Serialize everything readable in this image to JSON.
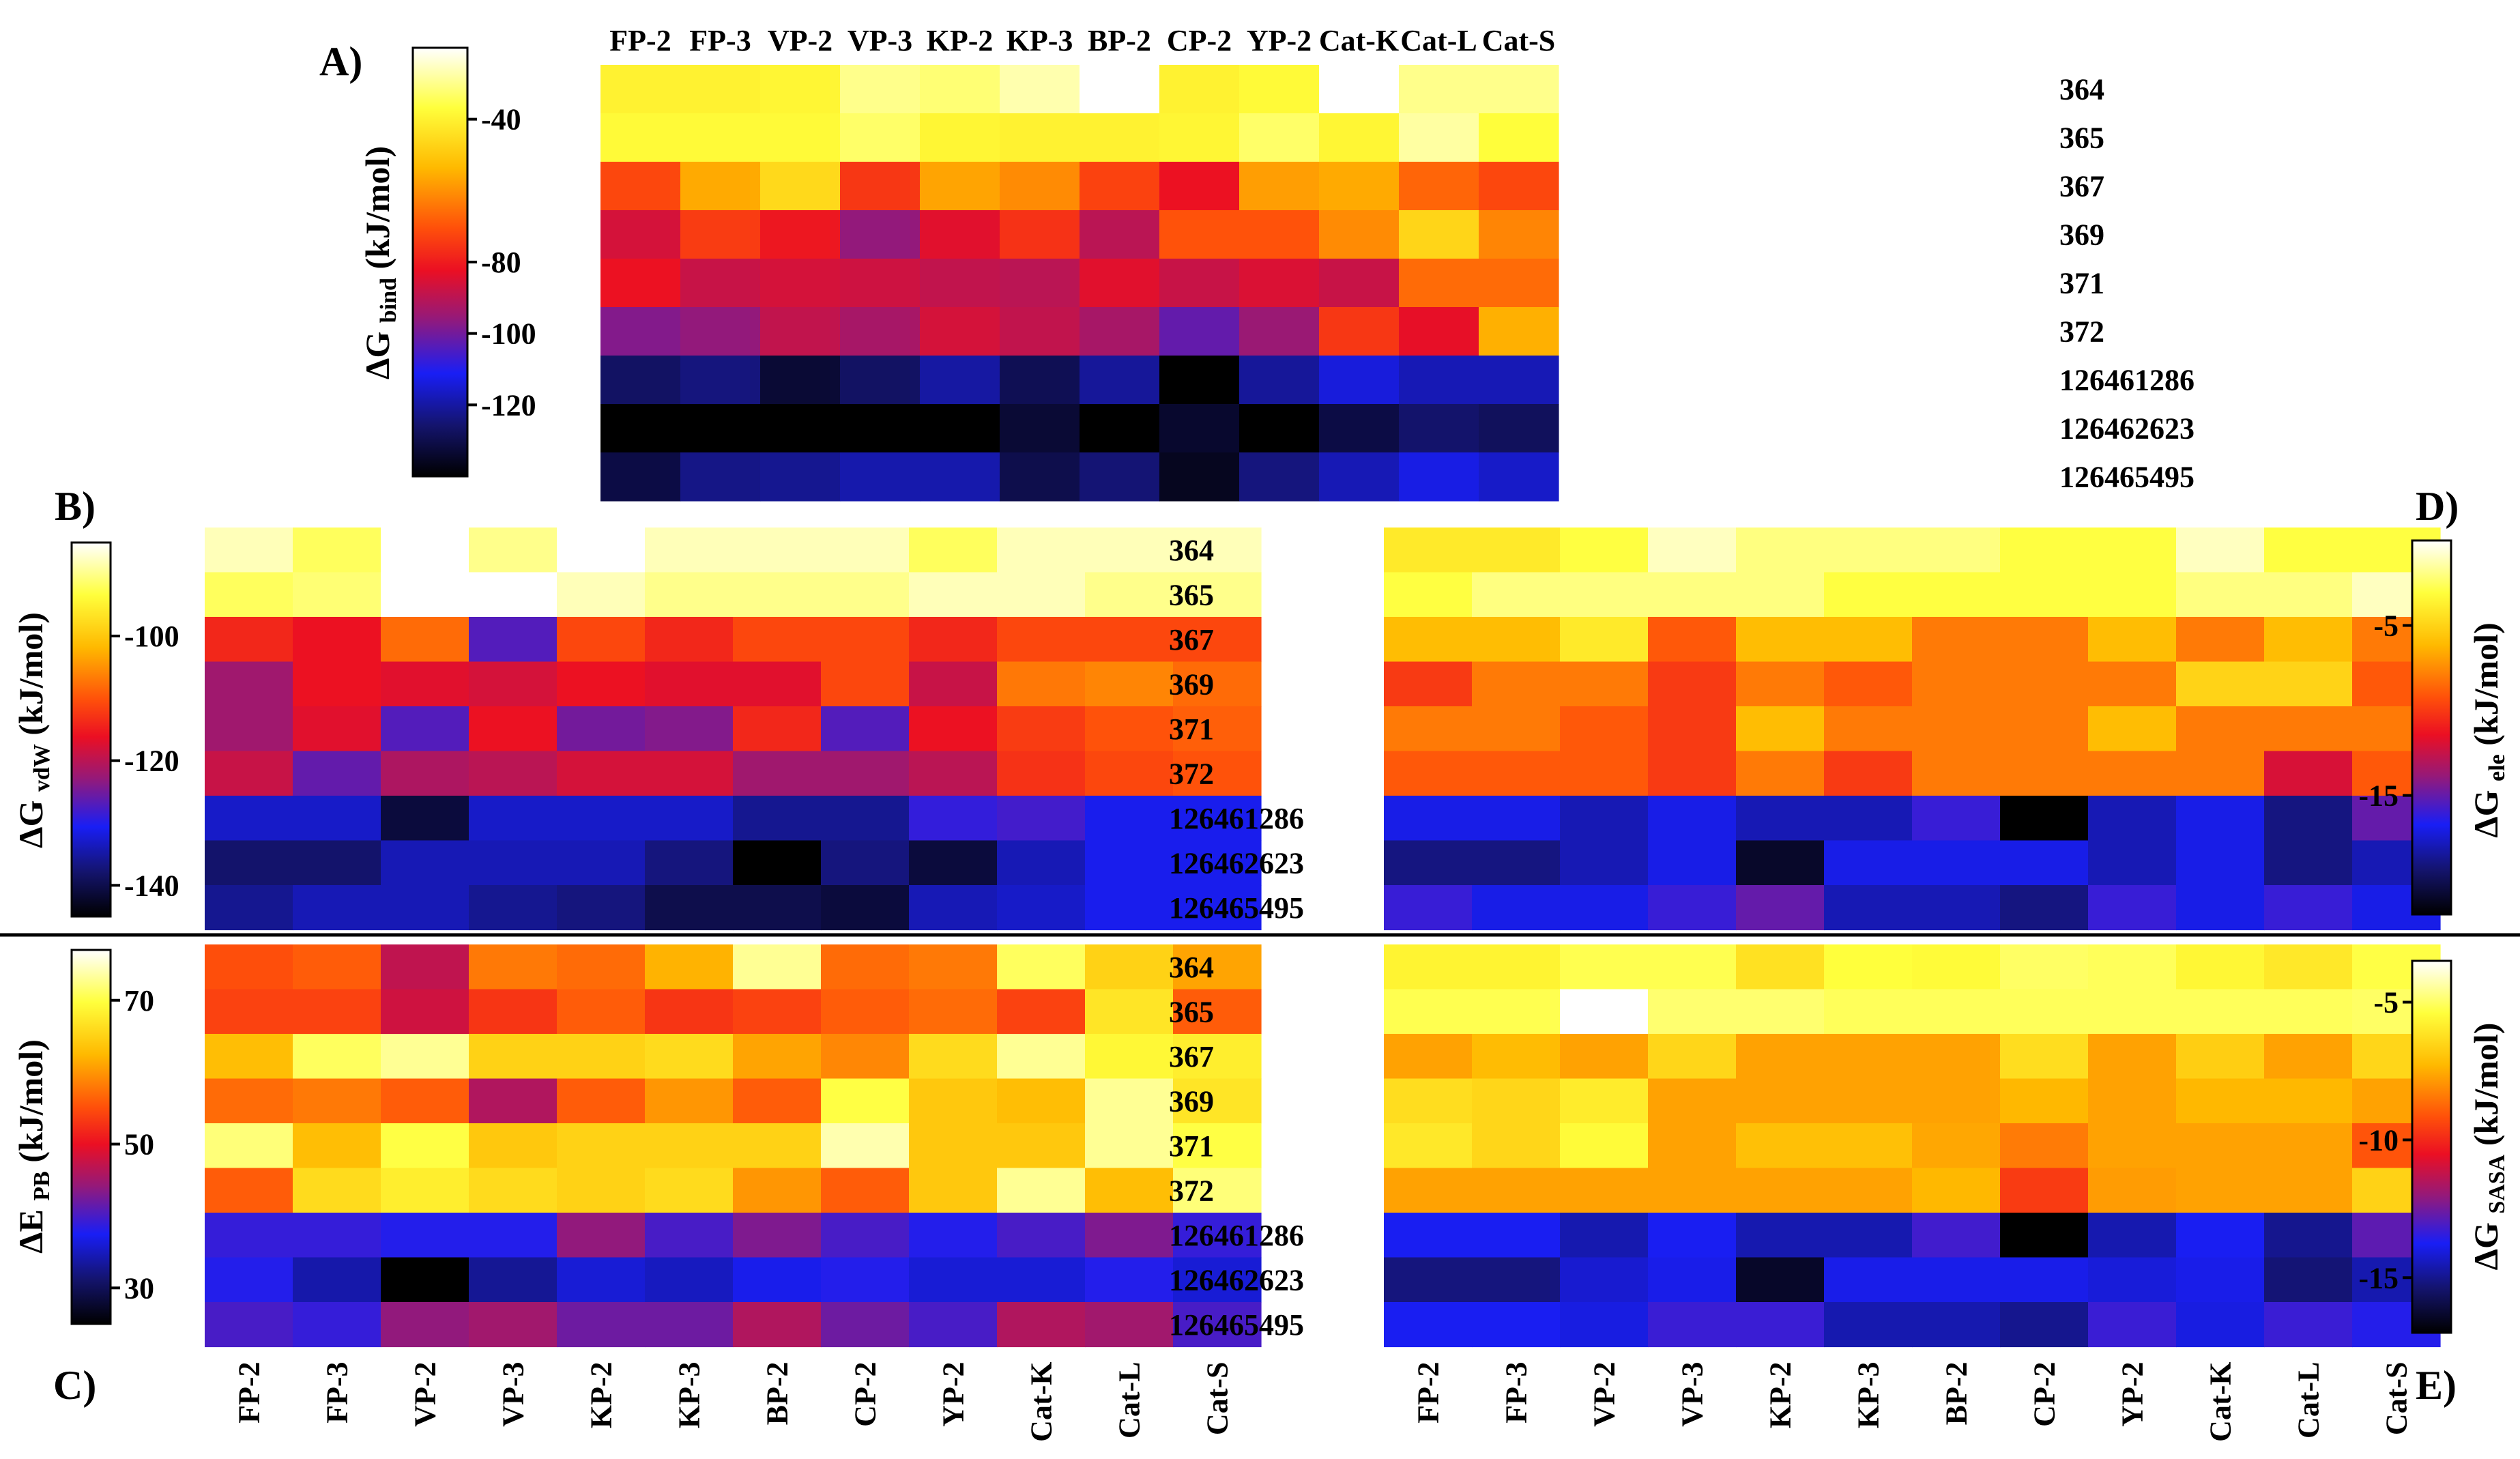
{
  "columns": [
    "FP-2",
    "FP-3",
    "VP-2",
    "VP-3",
    "KP-2",
    "KP-3",
    "BP-2",
    "CP-2",
    "YP-2",
    "Cat-K",
    "Cat-L",
    "Cat-S"
  ],
  "rows": [
    "364",
    "365",
    "367",
    "369",
    "371",
    "372",
    "126461286",
    "126462623",
    "126465495"
  ],
  "chart_data": [
    {
      "panel": "A)",
      "type": "heatmap",
      "title": "ΔG bind (kJ/mol)",
      "colorbar": {
        "label": "ΔG",
        "subscript": "bind",
        "unit": " (kJ/mol)",
        "ticks": [
          -40,
          -80,
          -100,
          -120
        ],
        "range": [
          -140,
          -20
        ],
        "position": "left"
      },
      "values": [
        [
          -40,
          -40,
          -39,
          -30,
          -32,
          -27,
          -20,
          -40,
          -38,
          -20,
          -30,
          -30
        ],
        [
          -38,
          -38,
          -38,
          -33,
          -39,
          -40,
          -40,
          -39,
          -33,
          -39,
          -28,
          -37
        ],
        [
          -72,
          -56,
          -46,
          -75,
          -57,
          -61,
          -73,
          -82,
          -58,
          -56,
          -67,
          -72
        ],
        [
          -86,
          -74,
          -81,
          -96,
          -84,
          -76,
          -90,
          -70,
          -70,
          -61,
          -47,
          -62
        ],
        [
          -82,
          -88,
          -86,
          -87,
          -89,
          -90,
          -84,
          -88,
          -85,
          -88,
          -66,
          -66
        ],
        [
          -98,
          -96,
          -89,
          -93,
          -86,
          -89,
          -93,
          -102,
          -95,
          -75,
          -83,
          -55
        ],
        [
          -127,
          -124,
          -133,
          -127,
          -120,
          -129,
          -121,
          -140,
          -121,
          -114,
          -118,
          -118
        ],
        [
          -140,
          -140,
          -140,
          -140,
          -140,
          -133,
          -140,
          -134,
          -140,
          -131,
          -126,
          -128
        ],
        [
          -131,
          -123,
          -122,
          -119,
          -119,
          -130,
          -125,
          -136,
          -124,
          -118,
          -113,
          -116
        ]
      ]
    },
    {
      "panel": "B)",
      "type": "heatmap",
      "title": "ΔG vdW (kJ/mol)",
      "colorbar": {
        "label": "ΔG",
        "subscript": "vdW",
        "unit": " (kJ/mol)",
        "ticks": [
          -100,
          -120,
          -140
        ],
        "range": [
          -145,
          -85
        ],
        "position": "left"
      },
      "values": [
        [
          -88,
          -92,
          -85,
          -90,
          -85,
          -88,
          -88,
          -88,
          -92,
          -88,
          -88,
          -88
        ],
        [
          -92,
          -91,
          -85,
          -85,
          -88,
          -90,
          -90,
          -90,
          -88,
          -88,
          -90,
          -90
        ],
        [
          -114,
          -116,
          -108,
          -127,
          -111,
          -114,
          -111,
          -111,
          -114,
          -111,
          -111,
          -111
        ],
        [
          -122,
          -116,
          -117,
          -118,
          -116,
          -117,
          -117,
          -111,
          -119,
          -107,
          -106,
          -108
        ],
        [
          -122,
          -117,
          -127,
          -116,
          -125,
          -124,
          -114,
          -127,
          -116,
          -112,
          -110,
          -109
        ],
        [
          -119,
          -126,
          -121,
          -120,
          -118,
          -118,
          -122,
          -122,
          -120,
          -113,
          -111,
          -110
        ],
        [
          -133,
          -133,
          -141,
          -133,
          -133,
          -133,
          -136,
          -136,
          -129,
          -128,
          -131,
          -131
        ],
        [
          -138,
          -138,
          -134,
          -134,
          -134,
          -137,
          -145,
          -137,
          -141,
          -134,
          -131,
          -131
        ],
        [
          -136,
          -134,
          -134,
          -136,
          -137,
          -140,
          -140,
          -141,
          -134,
          -133,
          -131,
          -131
        ]
      ]
    },
    {
      "panel": "D)",
      "type": "heatmap",
      "title": "ΔG ele (kJ/mol)",
      "colorbar": {
        "label": "ΔG",
        "subscript": "ele",
        "unit": " (kJ/mol)",
        "ticks": [
          -5,
          -15
        ],
        "range": [
          -22,
          0
        ],
        "position": "right"
      },
      "values": [
        [
          -4,
          -4,
          -3,
          -1,
          -2,
          -2,
          -2,
          -3,
          -3,
          -1,
          -3,
          -3
        ],
        [
          -3,
          -2,
          -2,
          -2,
          -2,
          -3,
          -3,
          -3,
          -3,
          -2,
          -2,
          -1
        ],
        [
          -6,
          -6,
          -4,
          -9,
          -6,
          -6,
          -8,
          -8,
          -6,
          -8,
          -6,
          -8
        ],
        [
          -10,
          -8,
          -8,
          -10,
          -8,
          -9,
          -8,
          -8,
          -8,
          -5,
          -5,
          -9
        ],
        [
          -8,
          -8,
          -9,
          -10,
          -6,
          -8,
          -8,
          -8,
          -6,
          -8,
          -8,
          -8
        ],
        [
          -9,
          -9,
          -9,
          -10,
          -8,
          -10,
          -8,
          -8,
          -8,
          -8,
          -12,
          -9
        ],
        [
          -17,
          -17,
          -18,
          -17,
          -18,
          -18,
          -16,
          -22,
          -18,
          -17,
          -19,
          -15
        ],
        [
          -19,
          -19,
          -18,
          -17,
          -21,
          -17,
          -17,
          -17,
          -18,
          -17,
          -19,
          -18
        ],
        [
          -16,
          -17,
          -17,
          -16,
          -15,
          -18,
          -18,
          -19,
          -16,
          -17,
          -16,
          -17
        ]
      ]
    },
    {
      "panel": "C)",
      "type": "heatmap",
      "title": "ΔE PB (kJ/mol)",
      "colorbar": {
        "label": "ΔE",
        "subscript": "PB",
        "unit": " (kJ/mol)",
        "ticks": [
          30,
          50,
          70
        ],
        "range": [
          25,
          77
        ],
        "position": "left"
      },
      "values": [
        [
          55,
          56,
          47,
          58,
          57,
          62,
          73,
          57,
          58,
          71,
          65,
          61
        ],
        [
          54,
          54,
          48,
          53,
          56,
          53,
          54,
          56,
          57,
          54,
          67,
          56
        ],
        [
          63,
          71,
          73,
          65,
          65,
          66,
          61,
          59,
          66,
          73,
          69,
          68
        ],
        [
          57,
          58,
          56,
          46,
          56,
          60,
          56,
          70,
          64,
          63,
          73,
          67
        ],
        [
          72,
          63,
          70,
          64,
          65,
          65,
          65,
          74,
          64,
          64,
          73,
          70
        ],
        [
          56,
          66,
          68,
          66,
          65,
          66,
          60,
          56,
          64,
          73,
          63,
          72
        ],
        [
          39,
          39,
          38,
          38,
          44,
          40,
          43,
          40,
          38,
          40,
          43,
          39
        ],
        [
          38,
          34,
          25,
          33,
          36,
          35,
          37,
          38,
          36,
          36,
          38,
          36
        ],
        [
          40,
          39,
          44,
          45,
          42,
          42,
          46,
          42,
          40,
          46,
          45,
          40
        ]
      ]
    },
    {
      "panel": "E)",
      "type": "heatmap",
      "title": "ΔG SASA (kJ/mol)",
      "colorbar": {
        "label": "ΔG",
        "subscript": "SASA",
        "unit": " (kJ/mol)",
        "ticks": [
          -5,
          -10,
          -15
        ],
        "range": [
          -17,
          -3.5
        ],
        "position": "right"
      },
      "values": [
        [
          -5.7,
          -5.7,
          -5.2,
          -5.2,
          -6.2,
          -5.4,
          -5.5,
          -5.0,
          -5.1,
          -5.6,
          -6.0,
          -5.3
        ],
        [
          -5.2,
          -5.2,
          -3.5,
          -4.9,
          -4.9,
          -5.1,
          -5.1,
          -5.1,
          -5.1,
          -5.1,
          -5.1,
          -5.0
        ],
        [
          -7.7,
          -7.2,
          -7.7,
          -6.5,
          -7.7,
          -7.7,
          -7.7,
          -6.3,
          -7.7,
          -6.7,
          -7.7,
          -6.5
        ],
        [
          -6.3,
          -6.5,
          -5.9,
          -7.7,
          -7.7,
          -7.7,
          -7.7,
          -7.3,
          -7.7,
          -7.3,
          -7.3,
          -7.7
        ],
        [
          -6.0,
          -6.5,
          -5.5,
          -7.7,
          -7.1,
          -7.1,
          -7.6,
          -8.4,
          -7.7,
          -7.7,
          -7.7,
          -9.1
        ],
        [
          -7.7,
          -7.7,
          -7.7,
          -7.7,
          -7.7,
          -7.7,
          -7.3,
          -9.6,
          -7.8,
          -7.7,
          -7.7,
          -6.6
        ],
        [
          -13.8,
          -13.8,
          -14.6,
          -13.8,
          -14.6,
          -14.6,
          -13.2,
          -17.0,
          -14.6,
          -13.8,
          -15.0,
          -12.8
        ],
        [
          -15.2,
          -15.2,
          -14.2,
          -13.9,
          -16.4,
          -13.9,
          -13.9,
          -13.9,
          -14.1,
          -13.9,
          -15.3,
          -14.6
        ],
        [
          -13.8,
          -13.8,
          -14.0,
          -13.3,
          -13.3,
          -14.6,
          -14.6,
          -15.0,
          -13.3,
          -14.0,
          -13.3,
          -13.6
        ]
      ]
    }
  ]
}
